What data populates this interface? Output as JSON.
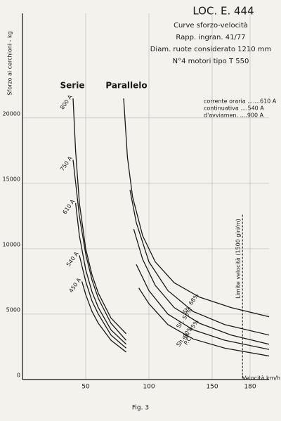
{
  "chart_data": {
    "type": "line",
    "title": "LOC. E. 444",
    "subtitle_lines": [
      "Curve sforzo-velocità",
      "Rapp. ingran. 41/77",
      "Diam. ruote considerato 1210 mm",
      "N°4 motori tipo T 550",
      "corrente oraria .......610 A",
      "continuativa ....540 A",
      "d'avviamen. ....900 A"
    ],
    "y_label": "Sforzo ai cerchioni - kg",
    "x_label": "Velocità km/h",
    "groups": [
      "Serie",
      "Parallelo"
    ],
    "limit_label": "Limite velocità (1500 giri/m)",
    "limit_x": 174,
    "caption": "Fig. 3",
    "xlim": [
      0,
      195
    ],
    "ylim": [
      0,
      28000
    ],
    "xticks": [
      50,
      100,
      150,
      180
    ],
    "yticks": [
      0,
      5000,
      10000,
      15000,
      20000
    ],
    "grid": true,
    "series": [
      {
        "name": "800 A",
        "color": "#1a1a1a",
        "x": [
          40,
          42,
          45,
          50,
          55,
          60,
          70,
          82
        ],
        "values": [
          21500,
          17500,
          13500,
          10000,
          8000,
          6600,
          4700,
          3500
        ]
      },
      {
        "name": "750 A",
        "color": "#1a1a1a",
        "x": [
          40,
          45,
          50,
          55,
          60,
          70,
          82
        ],
        "values": [
          16800,
          12500,
          9600,
          7600,
          6200,
          4300,
          3000
        ]
      },
      {
        "name": "610 A",
        "color": "#1a1a1a",
        "x": [
          42,
          45,
          50,
          55,
          60,
          70,
          82
        ],
        "values": [
          13500,
          11000,
          8400,
          6700,
          5500,
          3800,
          2700
        ]
      },
      {
        "name": "540 A",
        "color": "#1a1a1a",
        "x": [
          45,
          50,
          55,
          60,
          70,
          82
        ],
        "values": [
          9500,
          7500,
          6000,
          5000,
          3400,
          2400
        ]
      },
      {
        "name": "450 A",
        "color": "#1a1a1a",
        "x": [
          47,
          50,
          55,
          60,
          70,
          82
        ],
        "values": [
          7500,
          6500,
          5200,
          4300,
          3000,
          2100
        ]
      },
      {
        "name": "Sh. 68%",
        "color": "#1a1a1a",
        "x": [
          80,
          83,
          87,
          95,
          105,
          120,
          140,
          165,
          195
        ],
        "values": [
          21500,
          17000,
          14000,
          11000,
          9000,
          7400,
          6300,
          5500,
          4800
        ]
      },
      {
        "name": "Sh. 55%",
        "color": "#1a1a1a",
        "x": [
          85,
          90,
          100,
          115,
          135,
          160,
          195
        ],
        "values": [
          14500,
          12000,
          9000,
          6800,
          5200,
          4200,
          3400
        ]
      },
      {
        "name": "Sh. 45%",
        "color": "#1a1a1a",
        "x": [
          88,
          95,
          105,
          120,
          140,
          165,
          195
        ],
        "values": [
          11500,
          9200,
          7200,
          5500,
          4300,
          3400,
          2700
        ]
      },
      {
        "name": "Sh. 40%",
        "color": "#1a1a1a",
        "x": [
          90,
          100,
          115,
          135,
          160,
          195
        ],
        "values": [
          8800,
          6800,
          5000,
          3800,
          3000,
          2300
        ]
      },
      {
        "name": "P.C.",
        "color": "#1a1a1a",
        "x": [
          92,
          100,
          115,
          135,
          160,
          195
        ],
        "values": [
          7000,
          5800,
          4200,
          3100,
          2400,
          1800
        ]
      }
    ]
  }
}
